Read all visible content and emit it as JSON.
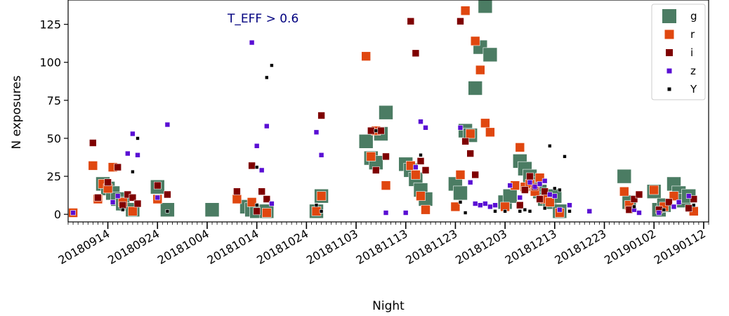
{
  "chart_data": {
    "type": "scatter",
    "title": "",
    "annotation": "T_EFF > 0.6",
    "annotation_color": "#00007f",
    "xlabel": "Night",
    "ylabel": "N exposures",
    "x_ticks": [
      "20180914",
      "20180924",
      "20181004",
      "20181014",
      "20181024",
      "20181103",
      "20181113",
      "20181123",
      "20181203",
      "20181213",
      "20181223",
      "20190102",
      "20190112"
    ],
    "y_ticks": [
      "0",
      "25",
      "50",
      "75",
      "100",
      "125"
    ],
    "xlim": [
      "2018-09-06",
      "2019-01-13"
    ],
    "ylim": [
      -5,
      141
    ],
    "grid": false,
    "legend_position": "top-right",
    "series": [
      {
        "name": "g",
        "color": "#4b7c63",
        "marker": "square",
        "size": "largest",
        "points": [
          [
            "2018-09-13",
            20
          ],
          [
            "2018-09-14",
            17
          ],
          [
            "2018-09-15",
            14
          ],
          [
            "2018-09-16",
            10
          ],
          [
            "2018-09-17",
            7
          ],
          [
            "2018-09-19",
            3
          ],
          [
            "2018-09-24",
            18
          ],
          [
            "2018-09-26",
            3
          ],
          [
            "2018-10-05",
            3
          ],
          [
            "2018-10-12",
            5
          ],
          [
            "2018-10-13",
            3
          ],
          [
            "2018-10-14",
            2
          ],
          [
            "2018-10-16",
            2
          ],
          [
            "2018-10-26",
            2
          ],
          [
            "2018-10-27",
            12
          ],
          [
            "2018-11-05",
            48
          ],
          [
            "2018-11-06",
            37
          ],
          [
            "2018-11-07",
            34
          ],
          [
            "2018-11-08",
            53
          ],
          [
            "2018-11-09",
            67
          ],
          [
            "2018-11-13",
            33
          ],
          [
            "2018-11-14",
            29
          ],
          [
            "2018-11-15",
            23
          ],
          [
            "2018-11-16",
            16
          ],
          [
            "2018-11-17",
            10
          ],
          [
            "2018-11-23",
            20
          ],
          [
            "2018-11-24",
            14
          ],
          [
            "2018-11-25",
            55
          ],
          [
            "2018-11-26",
            52
          ],
          [
            "2018-11-27",
            83
          ],
          [
            "2018-11-28",
            110
          ],
          [
            "2018-11-29",
            137
          ],
          [
            "2018-11-30",
            105
          ],
          [
            "2018-12-03",
            8
          ],
          [
            "2018-12-04",
            12
          ],
          [
            "2018-12-06",
            35
          ],
          [
            "2018-12-07",
            30
          ],
          [
            "2018-12-08",
            25
          ],
          [
            "2018-12-09",
            20
          ],
          [
            "2018-12-10",
            15
          ],
          [
            "2018-12-11",
            10
          ],
          [
            "2018-12-12",
            8
          ],
          [
            "2018-12-13",
            12
          ],
          [
            "2018-12-14",
            2
          ],
          [
            "2018-12-27",
            25
          ],
          [
            "2018-12-28",
            8
          ],
          [
            "2019-01-02",
            15
          ],
          [
            "2019-01-03",
            3
          ],
          [
            "2019-01-04",
            6
          ],
          [
            "2019-01-06",
            20
          ],
          [
            "2019-01-07",
            14
          ],
          [
            "2019-01-08",
            9
          ],
          [
            "2019-01-09",
            12
          ]
        ]
      },
      {
        "name": "r",
        "color": "#e0470f",
        "marker": "square",
        "size": "large",
        "points": [
          [
            "2018-09-07",
            1
          ],
          [
            "2018-09-11",
            32
          ],
          [
            "2018-09-12",
            10
          ],
          [
            "2018-09-13",
            20
          ],
          [
            "2018-09-14",
            17
          ],
          [
            "2018-09-15",
            31
          ],
          [
            "2018-09-17",
            8
          ],
          [
            "2018-09-19",
            2
          ],
          [
            "2018-09-24",
            10
          ],
          [
            "2018-10-10",
            10
          ],
          [
            "2018-10-13",
            8
          ],
          [
            "2018-10-16",
            1
          ],
          [
            "2018-10-26",
            2
          ],
          [
            "2018-10-27",
            12
          ],
          [
            "2018-11-05",
            104
          ],
          [
            "2018-11-06",
            38
          ],
          [
            "2018-11-07",
            55
          ],
          [
            "2018-11-09",
            19
          ],
          [
            "2018-11-14",
            32
          ],
          [
            "2018-11-15",
            26
          ],
          [
            "2018-11-16",
            12
          ],
          [
            "2018-11-17",
            3
          ],
          [
            "2018-11-23",
            5
          ],
          [
            "2018-11-24",
            26
          ],
          [
            "2018-11-25",
            134
          ],
          [
            "2018-11-26",
            53
          ],
          [
            "2018-11-27",
            114
          ],
          [
            "2018-11-28",
            95
          ],
          [
            "2018-11-29",
            60
          ],
          [
            "2018-11-30",
            54
          ],
          [
            "2018-12-03",
            5
          ],
          [
            "2018-12-05",
            19
          ],
          [
            "2018-12-06",
            44
          ],
          [
            "2018-12-07",
            18
          ],
          [
            "2018-12-08",
            20
          ],
          [
            "2018-12-09",
            15
          ],
          [
            "2018-12-10",
            24
          ],
          [
            "2018-12-11",
            10
          ],
          [
            "2018-12-12",
            8
          ],
          [
            "2018-12-14",
            1
          ],
          [
            "2018-12-27",
            15
          ],
          [
            "2018-12-28",
            6
          ],
          [
            "2019-01-02",
            16
          ],
          [
            "2019-01-04",
            5
          ],
          [
            "2019-01-06",
            12
          ],
          [
            "2019-01-10",
            2
          ]
        ]
      },
      {
        "name": "i",
        "color": "#7f0000",
        "marker": "square",
        "size": "medium",
        "points": [
          [
            "2018-09-11",
            47
          ],
          [
            "2018-09-12",
            11
          ],
          [
            "2018-09-14",
            21
          ],
          [
            "2018-09-16",
            31
          ],
          [
            "2018-09-17",
            6
          ],
          [
            "2018-09-18",
            13
          ],
          [
            "2018-09-19",
            11
          ],
          [
            "2018-09-20",
            7
          ],
          [
            "2018-09-24",
            19
          ],
          [
            "2018-09-26",
            13
          ],
          [
            "2018-10-10",
            15
          ],
          [
            "2018-10-13",
            32
          ],
          [
            "2018-10-14",
            2
          ],
          [
            "2018-10-15",
            15
          ],
          [
            "2018-10-16",
            10
          ],
          [
            "2018-10-27",
            65
          ],
          [
            "2018-11-06",
            55
          ],
          [
            "2018-11-07",
            29
          ],
          [
            "2018-11-08",
            55
          ],
          [
            "2018-11-09",
            38
          ],
          [
            "2018-11-14",
            127
          ],
          [
            "2018-11-15",
            106
          ],
          [
            "2018-11-16",
            35
          ],
          [
            "2018-11-17",
            29
          ],
          [
            "2018-11-24",
            127
          ],
          [
            "2018-11-25",
            48
          ],
          [
            "2018-11-26",
            40
          ],
          [
            "2018-11-27",
            26
          ],
          [
            "2018-12-06",
            6
          ],
          [
            "2018-12-07",
            16
          ],
          [
            "2018-12-08",
            25
          ],
          [
            "2018-12-09",
            18
          ],
          [
            "2018-12-10",
            10
          ],
          [
            "2018-12-11",
            15
          ],
          [
            "2018-12-28",
            3
          ],
          [
            "2018-12-29",
            10
          ],
          [
            "2018-12-30",
            13
          ],
          [
            "2019-01-03",
            3
          ],
          [
            "2019-01-05",
            8
          ],
          [
            "2019-01-09",
            4
          ],
          [
            "2019-01-10",
            10
          ]
        ]
      },
      {
        "name": "z",
        "color": "#5a0fd4",
        "marker": "square",
        "size": "small",
        "points": [
          [
            "2018-09-07",
            1
          ],
          [
            "2018-09-15",
            8
          ],
          [
            "2018-09-16",
            12
          ],
          [
            "2018-09-18",
            40
          ],
          [
            "2018-09-19",
            53
          ],
          [
            "2018-09-20",
            39
          ],
          [
            "2018-09-24",
            11
          ],
          [
            "2018-09-26",
            59
          ],
          [
            "2018-10-13",
            113
          ],
          [
            "2018-10-14",
            45
          ],
          [
            "2018-10-15",
            29
          ],
          [
            "2018-10-16",
            58
          ],
          [
            "2018-10-17",
            7
          ],
          [
            "2018-10-26",
            54
          ],
          [
            "2018-10-27",
            39
          ],
          [
            "2018-11-09",
            1
          ],
          [
            "2018-11-13",
            1
          ],
          [
            "2018-11-15",
            31
          ],
          [
            "2018-11-16",
            61
          ],
          [
            "2018-11-17",
            57
          ],
          [
            "2018-11-24",
            57
          ],
          [
            "2018-11-26",
            21
          ],
          [
            "2018-11-27",
            7
          ],
          [
            "2018-11-28",
            6
          ],
          [
            "2018-11-29",
            7
          ],
          [
            "2018-11-30",
            5
          ],
          [
            "2018-12-01",
            6
          ],
          [
            "2018-12-04",
            19
          ],
          [
            "2018-12-06",
            11
          ],
          [
            "2018-12-08",
            21
          ],
          [
            "2018-12-09",
            18
          ],
          [
            "2018-12-10",
            20
          ],
          [
            "2018-12-11",
            22
          ],
          [
            "2018-12-12",
            13
          ],
          [
            "2018-12-13",
            12
          ],
          [
            "2018-12-14",
            3
          ],
          [
            "2018-12-16",
            6
          ],
          [
            "2018-12-20",
            2
          ],
          [
            "2018-12-29",
            3
          ],
          [
            "2018-12-30",
            1
          ],
          [
            "2019-01-03",
            1
          ],
          [
            "2019-01-06",
            5
          ],
          [
            "2019-01-07",
            8
          ],
          [
            "2019-01-09",
            12
          ]
        ]
      },
      {
        "name": "Y",
        "color": "#000000",
        "marker": "square",
        "size": "smallest",
        "points": [
          [
            "2018-09-17",
            3
          ],
          [
            "2018-09-19",
            28
          ],
          [
            "2018-09-20",
            50
          ],
          [
            "2018-09-26",
            2
          ],
          [
            "2018-10-14",
            31
          ],
          [
            "2018-10-16",
            90
          ],
          [
            "2018-10-17",
            98
          ],
          [
            "2018-10-14",
            6
          ],
          [
            "2018-10-26",
            6
          ],
          [
            "2018-10-27",
            2
          ],
          [
            "2018-11-07",
            55
          ],
          [
            "2018-11-16",
            39
          ],
          [
            "2018-11-24",
            8
          ],
          [
            "2018-11-25",
            1
          ],
          [
            "2018-12-01",
            2
          ],
          [
            "2018-12-03",
            2
          ],
          [
            "2018-12-06",
            2
          ],
          [
            "2018-12-07",
            3
          ],
          [
            "2018-12-08",
            2
          ],
          [
            "2018-12-11",
            4
          ],
          [
            "2018-12-12",
            45
          ],
          [
            "2018-12-13",
            17
          ],
          [
            "2018-12-14",
            16
          ],
          [
            "2018-12-15",
            38
          ],
          [
            "2018-12-16",
            2
          ],
          [
            "2018-12-29",
            5
          ],
          [
            "2019-01-04",
            3
          ],
          [
            "2019-01-10",
            6
          ]
        ]
      }
    ]
  }
}
